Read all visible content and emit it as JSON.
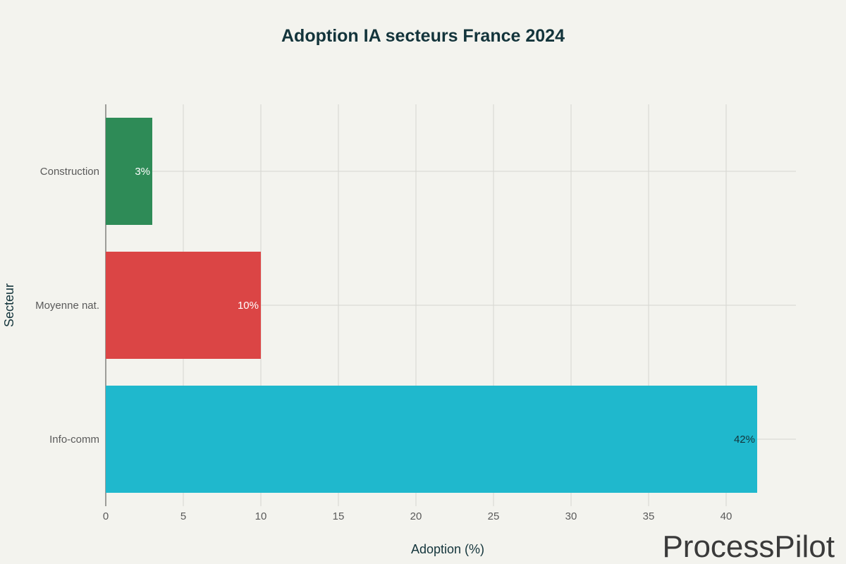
{
  "watermark": "ProcessPilot",
  "chart_data": {
    "type": "bar",
    "orientation": "horizontal",
    "title": "Adoption IA secteurs France 2024",
    "xlabel": "Adoption (%)",
    "ylabel": "Secteur",
    "categories": [
      "Construction",
      "Moyenne nat.",
      "Info-comm"
    ],
    "values": [
      3,
      10,
      42
    ],
    "data_labels": [
      "3%",
      "10%",
      "42%"
    ],
    "colors": [
      "#2e8b57",
      "#db4545",
      "#1fb8cd"
    ],
    "label_colors": [
      "#ffffff",
      "#ffffff",
      "#13343b"
    ],
    "xticks": [
      0,
      5,
      10,
      15,
      20,
      25,
      30,
      35,
      40
    ],
    "xtick_labels": [
      "0",
      "5",
      "10",
      "15",
      "20",
      "25",
      "30",
      "35",
      "40"
    ],
    "xlim": [
      0,
      44.5
    ],
    "grid": true,
    "legend": "none"
  }
}
